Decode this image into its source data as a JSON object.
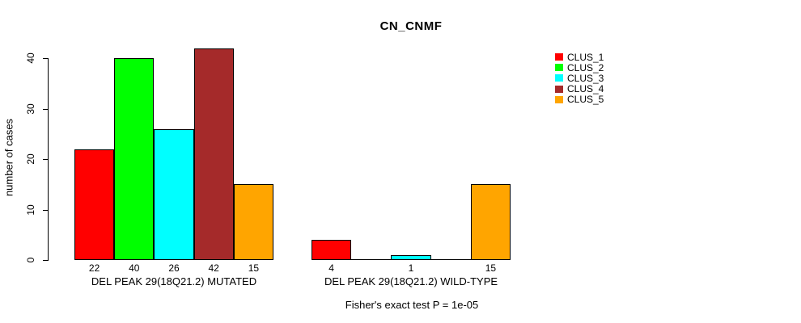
{
  "title": "CN_CNMF",
  "y_axis": {
    "label": "number of cases",
    "ticks": [
      0,
      10,
      20,
      30,
      40
    ]
  },
  "footer": "Fisher's exact test P = 1e-05",
  "chart_data": {
    "type": "bar",
    "title": "CN_CNMF",
    "xlabel": "",
    "ylabel": "number of cases",
    "ylim": [
      0,
      42
    ],
    "grid": false,
    "legend_position": "right-outside",
    "categories": [
      "DEL PEAK 29(18Q21.2) MUTATED",
      "DEL PEAK 29(18Q21.2) WILD-TYPE"
    ],
    "series": [
      {
        "name": "CLUS_1",
        "color": "#FF0000",
        "values": [
          22,
          4
        ]
      },
      {
        "name": "CLUS_2",
        "color": "#00FF00",
        "values": [
          40,
          0
        ]
      },
      {
        "name": "CLUS_3",
        "color": "#00FFFF",
        "values": [
          26,
          1
        ]
      },
      {
        "name": "CLUS_4",
        "color": "#A52A2A",
        "values": [
          42,
          0
        ]
      },
      {
        "name": "CLUS_5",
        "color": "#FFA500",
        "values": [
          15,
          15
        ]
      }
    ],
    "bar_value_labels": {
      "group_1": [
        22,
        40,
        26,
        42,
        15
      ],
      "group_2": [
        4,
        1,
        15
      ]
    },
    "annotation": "Fisher's exact test P = 1e-05"
  }
}
